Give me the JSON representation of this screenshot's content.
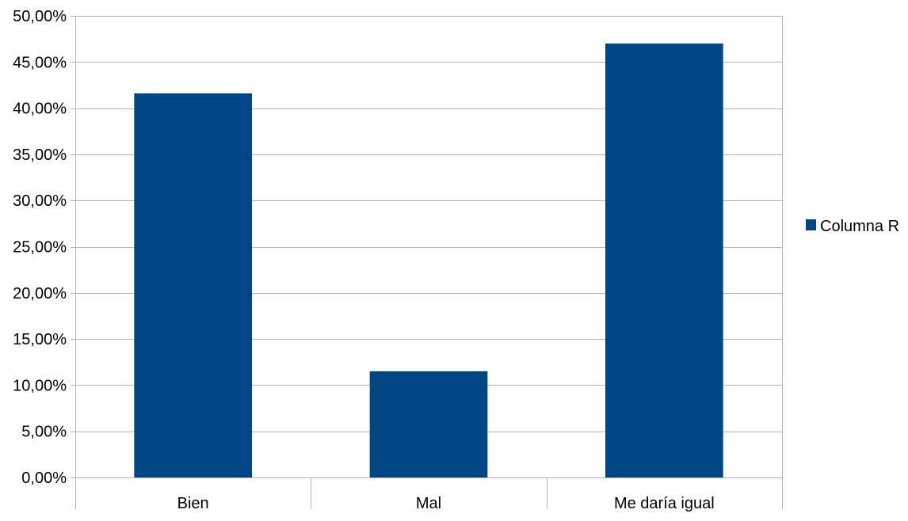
{
  "chart_data": {
    "type": "bar",
    "categories": [
      "Bien",
      "Mal",
      "Me daría igual"
    ],
    "series": [
      {
        "name": "Columna R",
        "values": [
          41.6,
          11.5,
          47.0
        ],
        "color": "#004586"
      }
    ],
    "ylim": [
      0,
      50
    ],
    "yticks": [
      0,
      5,
      10,
      15,
      20,
      25,
      30,
      35,
      40,
      45,
      50
    ],
    "ytick_labels": [
      "0,00%",
      "5,00%",
      "10,00%",
      "15,00%",
      "20,00%",
      "25,00%",
      "30,00%",
      "35,00%",
      "40,00%",
      "45,00%",
      "50,00%"
    ],
    "grid": true,
    "grid_color": "#b3b3b3",
    "legend_position": "right",
    "xlabel": "",
    "ylabel": "",
    "title": ""
  }
}
